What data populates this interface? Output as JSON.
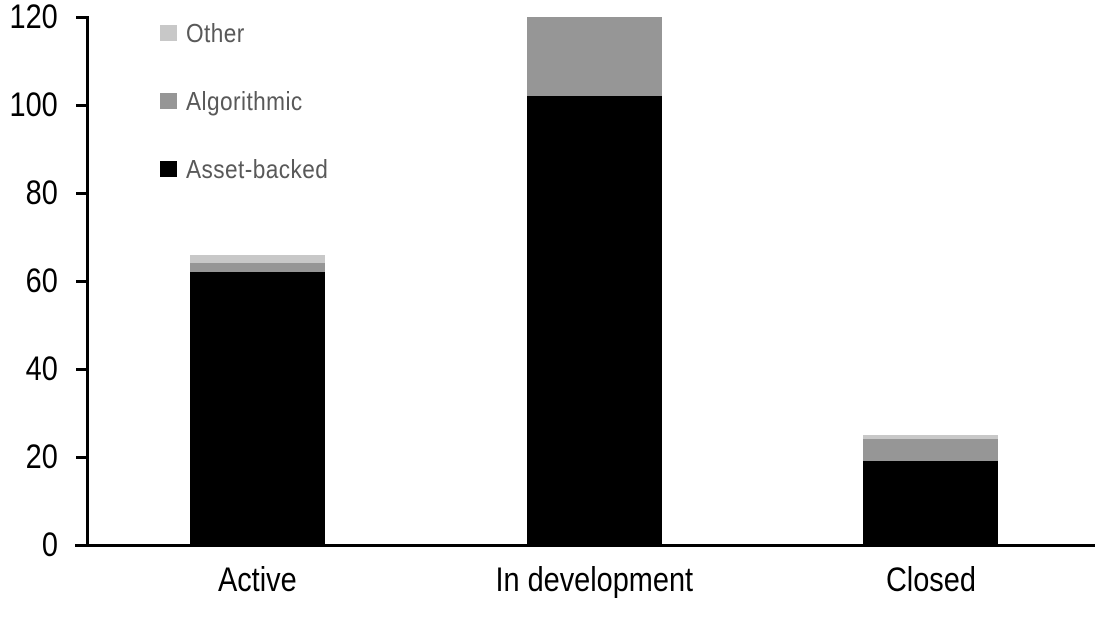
{
  "chart_data": {
    "type": "bar",
    "stacked": true,
    "title": "",
    "categories": [
      "Active",
      "In development",
      "Closed"
    ],
    "series": [
      {
        "name": "Asset-backed",
        "color": "#000000",
        "values": [
          62,
          102,
          19
        ]
      },
      {
        "name": "Algorithmic",
        "color": "#969696",
        "values": [
          2,
          18,
          5
        ]
      },
      {
        "name": "Other",
        "color": "#c8c8c8",
        "values": [
          2,
          0,
          1
        ]
      }
    ],
    "legend": {
      "position": "top-left",
      "order_top_to_bottom": [
        "Other",
        "Algorithmic",
        "Asset-backed"
      ],
      "text_color": "#595959"
    },
    "xlabel": "",
    "ylabel": "",
    "ylim": [
      0,
      120
    ],
    "yticks": [
      0,
      20,
      40,
      60,
      80,
      100,
      120
    ],
    "grid": false,
    "background": "#ffffff",
    "axis_color": "#000000"
  }
}
